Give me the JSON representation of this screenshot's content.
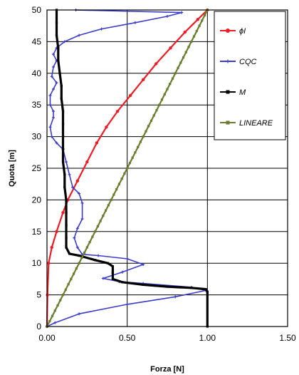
{
  "chart_data": {
    "type": "line",
    "title": "",
    "xlabel": "Forza [N]",
    "ylabel": "Quota [m]",
    "xlim": [
      0,
      1.5
    ],
    "ylim": [
      0,
      50
    ],
    "xticks": [
      0,
      0.5,
      1.0,
      1.5
    ],
    "xtick_labels": [
      "0.00",
      "0.50",
      "1.00",
      "1.50"
    ],
    "yticks": [
      0,
      5,
      10,
      15,
      20,
      25,
      30,
      35,
      40,
      45,
      50
    ],
    "ytick_labels": [
      "0",
      "5",
      "10",
      "15",
      "20",
      "25",
      "30",
      "35",
      "40",
      "45",
      "50"
    ],
    "grid": true,
    "legend_position": "top-right",
    "series": [
      {
        "name": "ϕI",
        "color": "#ee1c25",
        "marker": "circle",
        "points": [
          [
            0,
            0
          ],
          [
            0.003,
            5
          ],
          [
            0.01,
            10
          ],
          [
            0.03,
            12.5
          ],
          [
            0.06,
            15
          ],
          [
            0.1,
            18
          ],
          [
            0.13,
            20
          ],
          [
            0.19,
            23
          ],
          [
            0.25,
            26
          ],
          [
            0.31,
            29
          ],
          [
            0.37,
            31.5
          ],
          [
            0.44,
            34
          ],
          [
            0.52,
            36.5
          ],
          [
            0.6,
            39
          ],
          [
            0.68,
            41.5
          ],
          [
            0.77,
            44
          ],
          [
            0.86,
            46.5
          ],
          [
            0.94,
            48.5
          ],
          [
            1.0,
            50
          ]
        ]
      },
      {
        "name": "CQC",
        "color": "#3c3cc8",
        "marker": "plus",
        "points": [
          [
            0,
            0
          ],
          [
            0.05,
            0.6
          ],
          [
            0.2,
            2
          ],
          [
            0.5,
            3.5
          ],
          [
            0.8,
            4.7
          ],
          [
            0.99,
            5.7
          ],
          [
            0.9,
            6.2
          ],
          [
            0.6,
            6.8
          ],
          [
            0.45,
            7.1
          ],
          [
            0.35,
            7.6
          ],
          [
            0.47,
            8.6
          ],
          [
            0.6,
            9.8
          ],
          [
            0.5,
            10.7
          ],
          [
            0.32,
            11.2
          ],
          [
            0.22,
            11.4
          ],
          [
            0.19,
            12.5
          ],
          [
            0.17,
            14
          ],
          [
            0.19,
            15.5
          ],
          [
            0.22,
            17
          ],
          [
            0.22,
            19.5
          ],
          [
            0.2,
            21
          ],
          [
            0.16,
            22
          ],
          [
            0.14,
            24
          ],
          [
            0.12,
            26
          ],
          [
            0.1,
            28
          ],
          [
            0.06,
            29
          ],
          [
            0.03,
            30
          ],
          [
            0.02,
            31.5
          ],
          [
            0.04,
            33
          ],
          [
            0.04,
            34
          ],
          [
            0.02,
            35
          ],
          [
            0.02,
            36.5
          ],
          [
            0.04,
            37.5
          ],
          [
            0.06,
            38.5
          ],
          [
            0.03,
            39.5
          ],
          [
            0.04,
            41
          ],
          [
            0.06,
            42
          ],
          [
            0.04,
            43
          ],
          [
            0.06,
            44
          ],
          [
            0.11,
            45
          ],
          [
            0.2,
            46
          ],
          [
            0.34,
            47
          ],
          [
            0.55,
            48
          ],
          [
            0.75,
            49
          ],
          [
            0.84,
            49.6
          ],
          [
            0.18,
            50
          ]
        ]
      },
      {
        "name": "M",
        "color": "#000000",
        "marker": "square",
        "points": [
          [
            1.0,
            0
          ],
          [
            1.0,
            5.5
          ],
          [
            0.99,
            5.9
          ],
          [
            0.9,
            6.1
          ],
          [
            0.75,
            6.3
          ],
          [
            0.6,
            6.6
          ],
          [
            0.47,
            7.0
          ],
          [
            0.41,
            7.5
          ],
          [
            0.41,
            8.5
          ],
          [
            0.41,
            9.5
          ],
          [
            0.38,
            10.0
          ],
          [
            0.3,
            10.5
          ],
          [
            0.2,
            11.2
          ],
          [
            0.14,
            11.5
          ],
          [
            0.12,
            12.5
          ],
          [
            0.12,
            14
          ],
          [
            0.12,
            16
          ],
          [
            0.12,
            18
          ],
          [
            0.12,
            20
          ],
          [
            0.11,
            22
          ],
          [
            0.11,
            24
          ],
          [
            0.1,
            26
          ],
          [
            0.1,
            28
          ],
          [
            0.1,
            30
          ],
          [
            0.1,
            32
          ],
          [
            0.1,
            34
          ],
          [
            0.09,
            36
          ],
          [
            0.09,
            38
          ],
          [
            0.08,
            40
          ],
          [
            0.07,
            42
          ],
          [
            0.07,
            44
          ],
          [
            0.06,
            46
          ],
          [
            0.06,
            48
          ],
          [
            0.06,
            50
          ]
        ]
      },
      {
        "name": "LINEARE",
        "color": "#6a7c2e",
        "marker": "square",
        "points": [
          [
            0,
            0
          ],
          [
            1.0,
            50
          ]
        ]
      }
    ]
  }
}
